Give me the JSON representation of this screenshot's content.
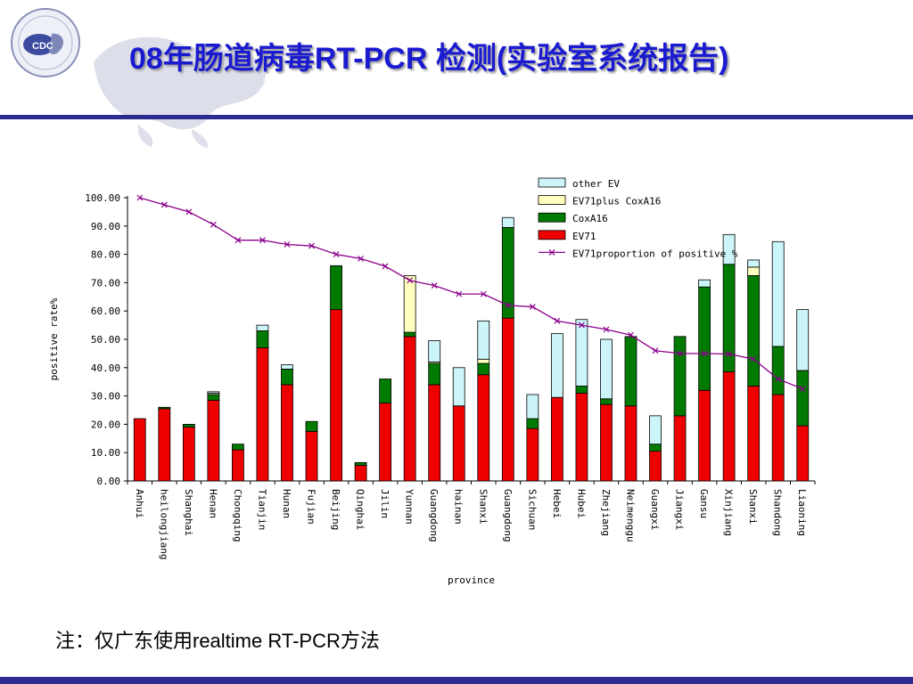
{
  "slide": {
    "title": "08年肠道病毒RT-PCR 检测(实验室系统报告)",
    "note": "注：仅广东使用realtime RT-PCR方法",
    "logo_text": "CDC",
    "title_color": "#1a1ad0",
    "rule_color": "#2b2b90"
  },
  "chart_data": {
    "type": "bar",
    "stacked": true,
    "xlabel": "province",
    "ylabel": "positive rate%",
    "ylim": [
      0,
      100
    ],
    "yticks": [
      "0.00",
      "10.00",
      "20.00",
      "30.00",
      "40.00",
      "50.00",
      "60.00",
      "70.00",
      "80.00",
      "90.00",
      "100.00"
    ],
    "legend_position": "top-right",
    "grid": false,
    "categories": [
      "Anhui",
      "heilongjiang",
      "Shanghai",
      "Henan",
      "Chongqing",
      "Tianjin",
      "Hunan",
      "Fujian",
      "Beijing",
      "Qinghai",
      "Jilin",
      "Yunnan",
      "Guangdong",
      "hainan",
      "Shanxi",
      "Guangdong",
      "Sichuan",
      "Hebei",
      "Hubei",
      "Zhejiang",
      "Neimenggu",
      "Guangxi",
      "Jiangxi",
      "Gansu",
      "Xinjiang",
      "Shanxi",
      "Shandong",
      "Liaoning"
    ],
    "series": [
      {
        "name": "EV71",
        "kind": "bar",
        "color": "#ee0000",
        "values": [
          22,
          25.5,
          19,
          28.5,
          11,
          47,
          34,
          17.5,
          60.5,
          5.5,
          27.5,
          51,
          34,
          26.5,
          37.5,
          57.5,
          18.5,
          29.5,
          31,
          27,
          26.5,
          10.5,
          23,
          32,
          38.5,
          33.5,
          30.5,
          19.5
        ]
      },
      {
        "name": "CoxA16",
        "kind": "bar",
        "color": "#007a00",
        "values": [
          0,
          0.5,
          1,
          2,
          2,
          6,
          5.5,
          3.5,
          15.5,
          1,
          8.5,
          1.5,
          7.5,
          0,
          4,
          32,
          3.5,
          0,
          2.5,
          2,
          24.5,
          2.5,
          28,
          36.5,
          38,
          39,
          17,
          19.5
        ]
      },
      {
        "name": "EV71plus CoxA16",
        "kind": "bar",
        "color": "#ffffc0",
        "values": [
          0,
          0,
          0,
          0.5,
          0,
          0,
          0,
          0,
          0,
          0,
          0,
          20,
          0.5,
          0,
          1.5,
          0,
          0,
          0,
          0,
          0,
          0,
          0,
          0,
          0,
          0,
          3,
          0,
          0
        ]
      },
      {
        "name": "other EV",
        "kind": "bar",
        "color": "#ccf5fa",
        "values": [
          0,
          0,
          0,
          0.5,
          0,
          2,
          1.5,
          0,
          0,
          0,
          0,
          0,
          7.5,
          13.5,
          13.5,
          3.5,
          8.5,
          22.5,
          23.5,
          21,
          0,
          10,
          0,
          2.5,
          10.5,
          2.5,
          37,
          21.5
        ]
      },
      {
        "name": "EV71proportion of positive %",
        "kind": "line",
        "color": "#8b008b",
        "values": [
          100,
          97.5,
          95,
          90.5,
          85,
          85,
          83.5,
          83,
          80,
          78.5,
          75.8,
          70.8,
          69,
          66,
          66,
          62,
          61.5,
          56.5,
          55,
          53.5,
          51.5,
          46,
          45,
          45,
          44.8,
          43,
          36,
          32.5
        ]
      }
    ]
  }
}
